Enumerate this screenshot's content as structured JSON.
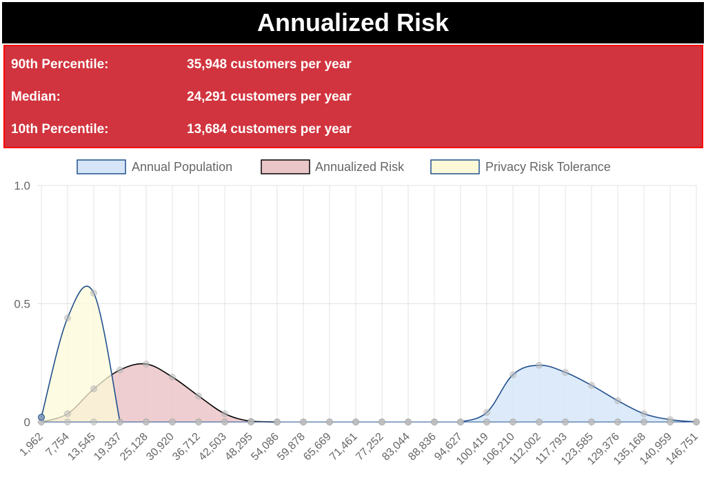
{
  "header": {
    "title": "Annualized Risk"
  },
  "stats": [
    {
      "label": "90th Percentile:",
      "value": "35,948 customers per year"
    },
    {
      "label": "Median:",
      "value": "24,291 customers per year"
    },
    {
      "label": "10th Percentile:",
      "value": "13,684 customers per year"
    }
  ],
  "colors": {
    "header_bg": "#000000",
    "header_text": "#ffffff",
    "stats_bg": "#D1343E",
    "stats_border": "#ff0000",
    "annual_population_fill": "#D6E6F8",
    "annual_population_line": "#1F4E8C",
    "annualized_risk_fill": "#EBC6C8",
    "annualized_risk_line": "#000000",
    "privacy_tolerance_fill": "#FCF9D8",
    "privacy_tolerance_line": "#1F4E8C",
    "grid": "#E3E3E3",
    "tick_text": "#666666",
    "point": "#BBBBBB"
  },
  "chart_data": {
    "type": "area",
    "title": "",
    "xlabel": "",
    "ylabel": "",
    "ylim": [
      0,
      1.0
    ],
    "yticks": [
      "0",
      "0.5",
      "1.0"
    ],
    "grid": true,
    "legend_position": "top",
    "categories": [
      "1,962",
      "7,754",
      "13,545",
      "19,337",
      "25,128",
      "30,920",
      "36,712",
      "42,503",
      "48,295",
      "54,086",
      "59,878",
      "65,669",
      "71,461",
      "77,252",
      "83,044",
      "88,836",
      "94,627",
      "100,419",
      "106,210",
      "112,002",
      "117,793",
      "123,585",
      "129,376",
      "135,168",
      "140,959",
      "146,751"
    ],
    "series": [
      {
        "name": "Annual Population",
        "values": [
          0,
          0,
          0,
          0,
          0,
          0,
          0,
          0,
          0,
          0,
          0,
          0,
          0,
          0,
          0,
          0,
          0,
          0.04,
          0.2,
          0.24,
          0.21,
          0.155,
          0.09,
          0.035,
          0.01,
          0
        ]
      },
      {
        "name": "Annualized Risk",
        "values": [
          0,
          0.035,
          0.14,
          0.22,
          0.245,
          0.19,
          0.11,
          0.035,
          0.003,
          0,
          0,
          0,
          0,
          0,
          0,
          0,
          0,
          0,
          0,
          0,
          0,
          0,
          0,
          0,
          0,
          0
        ]
      },
      {
        "name": "Privacy Risk Tolerance",
        "values": [
          0.02,
          0.44,
          0.545,
          0,
          0,
          0,
          0,
          0,
          0,
          0,
          0,
          0,
          0,
          0,
          0,
          0,
          0,
          0,
          0,
          0,
          0,
          0,
          0,
          0,
          0,
          0
        ]
      }
    ]
  }
}
